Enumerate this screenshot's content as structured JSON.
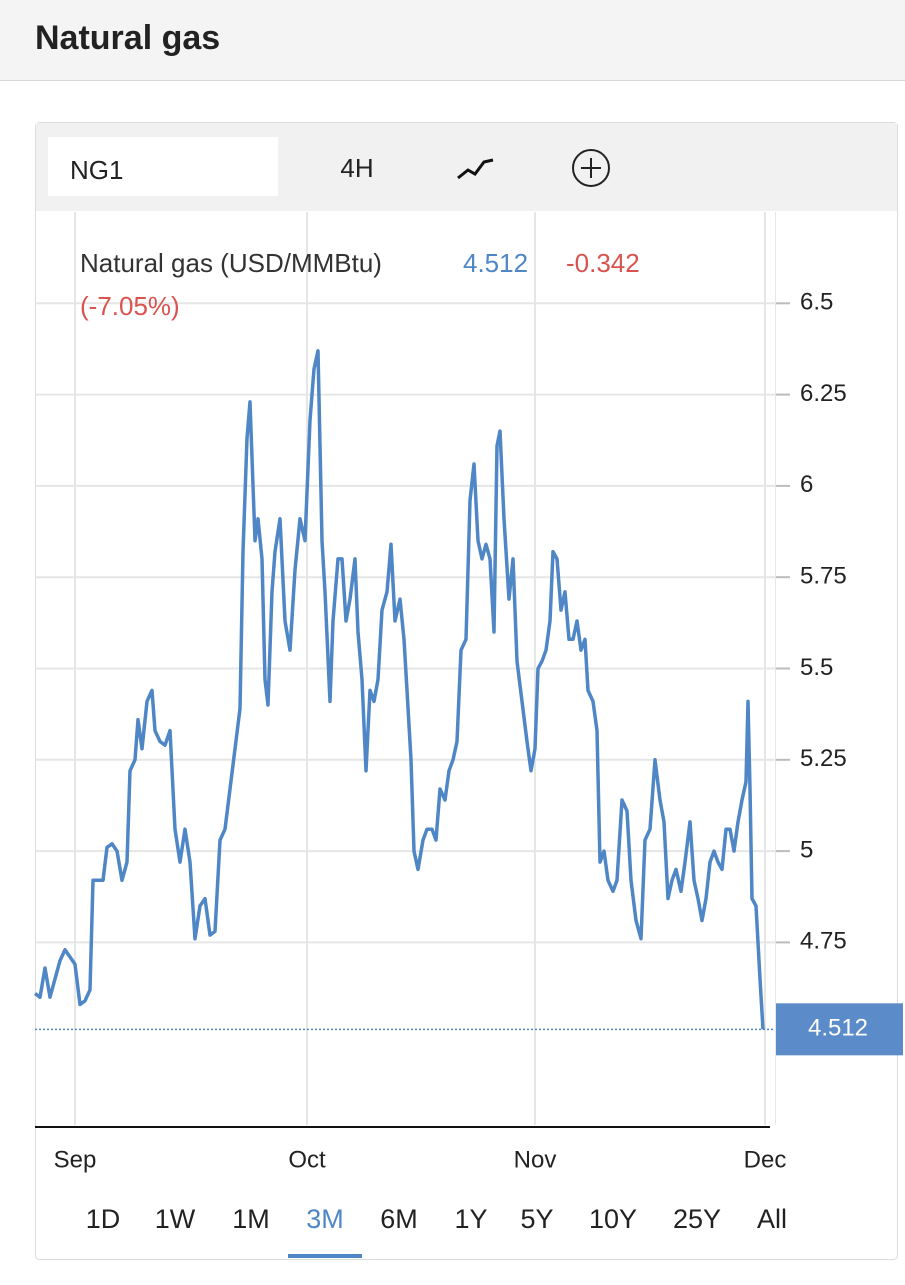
{
  "page": {
    "title": "Natural gas"
  },
  "toolbar": {
    "symbol": "NG1",
    "interval": "4H"
  },
  "chart_data": {
    "type": "line",
    "title": "Natural gas (USD/MMBtu)",
    "last_price": 4.512,
    "change": -0.342,
    "change_percent": "(-7.05%)",
    "xlim": [
      0,
      735
    ],
    "xticks": [
      {
        "value": 40,
        "label": "Sep"
      },
      {
        "value": 272,
        "label": "Oct"
      },
      {
        "value": 500,
        "label": "Nov"
      },
      {
        "value": 730,
        "label": "Dec"
      }
    ],
    "ylim": [
      4.25,
      6.75
    ],
    "yticks": [
      4.75,
      5,
      5.25,
      5.5,
      5.75,
      6,
      6.25,
      6.5
    ],
    "grid": true,
    "series": [
      {
        "name": "Natural gas (USD/MMBtu)",
        "color": "#4f86c6",
        "x": [
          0,
          5,
          10,
          15,
          20,
          25,
          30,
          35,
          40,
          45,
          50,
          55,
          58,
          63,
          68,
          72,
          77,
          82,
          87,
          92,
          95,
          100,
          103,
          107,
          112,
          117,
          120,
          125,
          130,
          135,
          140,
          145,
          150,
          155,
          160,
          165,
          170,
          175,
          180,
          185,
          190,
          195,
          200,
          205,
          208,
          212,
          215,
          220,
          223,
          227,
          230,
          233,
          237,
          240,
          245,
          250,
          255,
          260,
          265,
          270,
          275,
          279,
          283,
          287,
          290,
          295,
          298,
          303,
          307,
          311,
          315,
          320,
          323,
          327,
          331,
          335,
          339,
          343,
          347,
          352,
          356,
          360,
          365,
          369,
          372,
          376,
          379,
          383,
          388,
          392,
          397,
          401,
          405,
          410,
          414,
          418,
          422,
          426,
          431,
          435,
          439,
          443,
          447,
          451,
          455,
          459,
          462,
          465,
          469,
          474,
          478,
          482,
          487,
          492,
          496,
          500,
          503,
          507,
          511,
          515,
          518,
          522,
          526,
          530,
          534,
          538,
          542,
          546,
          550,
          553,
          558,
          562,
          565,
          569,
          573,
          578,
          582,
          587,
          592,
          596,
          601,
          606,
          610,
          615,
          620,
          625,
          629,
          633,
          637,
          641,
          646,
          650,
          655,
          659,
          663,
          667,
          671,
          675,
          679,
          683,
          687,
          691,
          695,
          699,
          703,
          707,
          711,
          713,
          715,
          717,
          721,
          725,
          728
        ],
        "values": [
          4.61,
          4.6,
          4.68,
          4.6,
          4.65,
          4.7,
          4.73,
          4.71,
          4.69,
          4.58,
          4.59,
          4.62,
          4.92,
          4.92,
          4.92,
          5.01,
          5.02,
          5.0,
          4.92,
          4.97,
          5.22,
          5.25,
          5.36,
          5.28,
          5.41,
          5.44,
          5.33,
          5.3,
          5.29,
          5.33,
          5.06,
          4.97,
          5.06,
          4.97,
          4.76,
          4.85,
          4.87,
          4.77,
          4.78,
          5.03,
          5.06,
          5.17,
          5.28,
          5.39,
          5.82,
          6.13,
          6.23,
          5.85,
          5.91,
          5.8,
          5.47,
          5.4,
          5.71,
          5.82,
          5.91,
          5.63,
          5.55,
          5.77,
          5.91,
          5.85,
          6.18,
          6.32,
          6.37,
          5.85,
          5.71,
          5.41,
          5.63,
          5.8,
          5.8,
          5.63,
          5.69,
          5.8,
          5.6,
          5.47,
          5.22,
          5.44,
          5.41,
          5.47,
          5.66,
          5.71,
          5.84,
          5.63,
          5.69,
          5.58,
          5.44,
          5.25,
          5.0,
          4.95,
          5.03,
          5.06,
          5.06,
          5.03,
          5.17,
          5.14,
          5.22,
          5.25,
          5.3,
          5.55,
          5.58,
          5.96,
          6.06,
          5.85,
          5.8,
          5.84,
          5.8,
          5.6,
          6.11,
          6.15,
          5.91,
          5.69,
          5.8,
          5.52,
          5.41,
          5.3,
          5.22,
          5.28,
          5.5,
          5.52,
          5.55,
          5.63,
          5.82,
          5.8,
          5.66,
          5.71,
          5.58,
          5.58,
          5.63,
          5.55,
          5.58,
          5.44,
          5.41,
          5.33,
          4.97,
          5.0,
          4.92,
          4.89,
          4.92,
          5.14,
          5.11,
          4.92,
          4.81,
          4.76,
          5.03,
          5.06,
          5.25,
          5.14,
          5.08,
          4.87,
          4.92,
          4.95,
          4.89,
          4.97,
          5.08,
          4.92,
          4.87,
          4.81,
          4.87,
          4.97,
          5.0,
          4.97,
          4.95,
          5.06,
          5.06,
          5.0,
          5.08,
          5.14,
          5.19,
          5.41,
          5.17,
          4.87,
          4.85,
          4.65,
          4.512
        ]
      }
    ]
  },
  "ranges": {
    "items": [
      "1D",
      "1W",
      "1M",
      "3M",
      "6M",
      "1Y",
      "5Y",
      "10Y",
      "25Y",
      "All"
    ],
    "active": 3
  }
}
